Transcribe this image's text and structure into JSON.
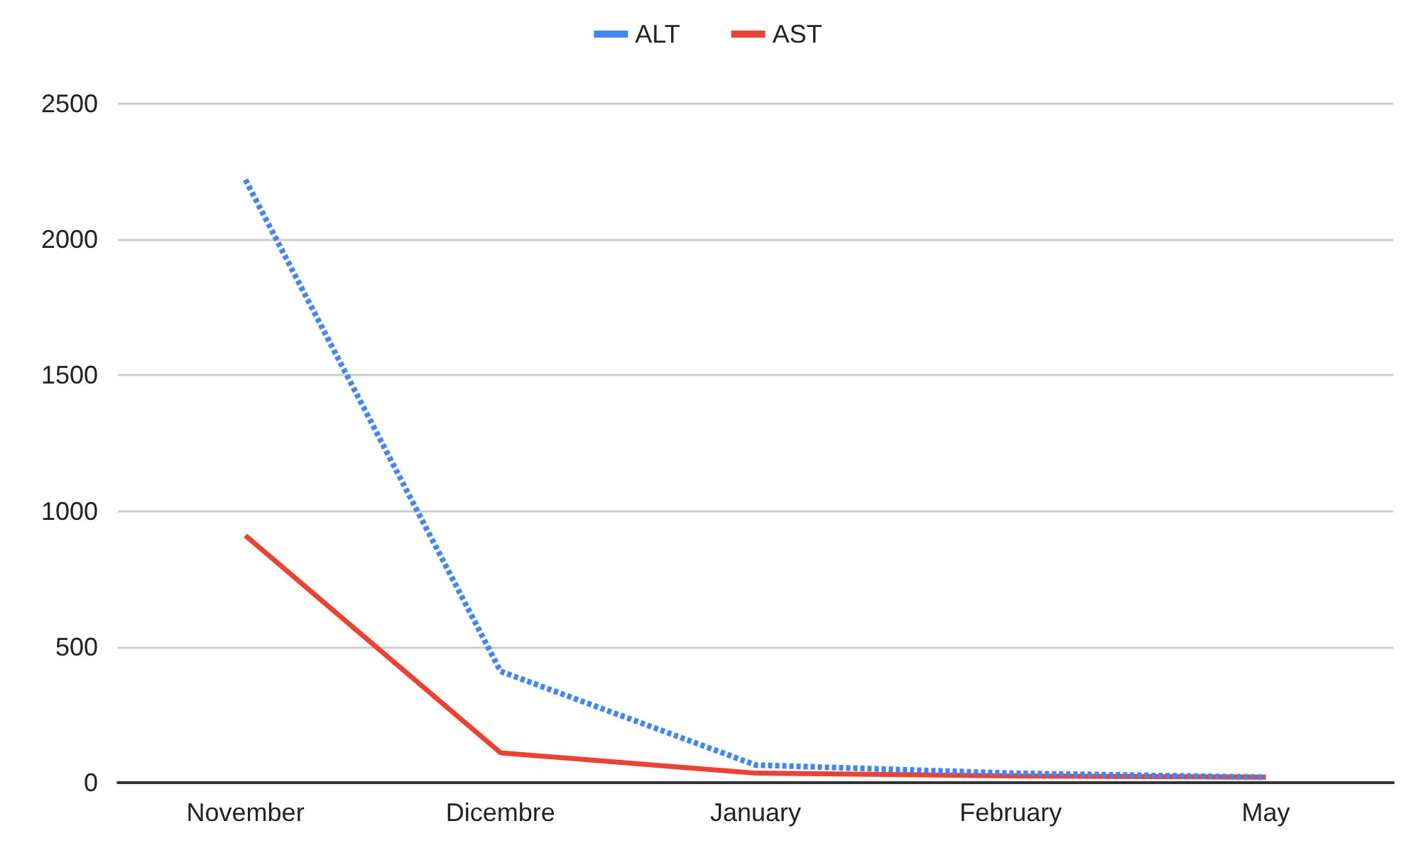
{
  "chart_data": {
    "type": "line",
    "categories": [
      "November",
      "Dicembre",
      "January",
      "February",
      "May"
    ],
    "series": [
      {
        "name": "ALT",
        "color": "#4285f4",
        "line_style": "dotted",
        "values": [
          2220,
          410,
          65,
          35,
          20
        ]
      },
      {
        "name": "AST",
        "color": "#ea4335",
        "line_style": "solid",
        "values": [
          910,
          110,
          35,
          25,
          20
        ]
      }
    ],
    "ylim": [
      0,
      2500
    ],
    "yticks": [
      0,
      500,
      1000,
      1500,
      2000,
      2500
    ],
    "grid": "y",
    "legend": "top",
    "marker": "none"
  }
}
